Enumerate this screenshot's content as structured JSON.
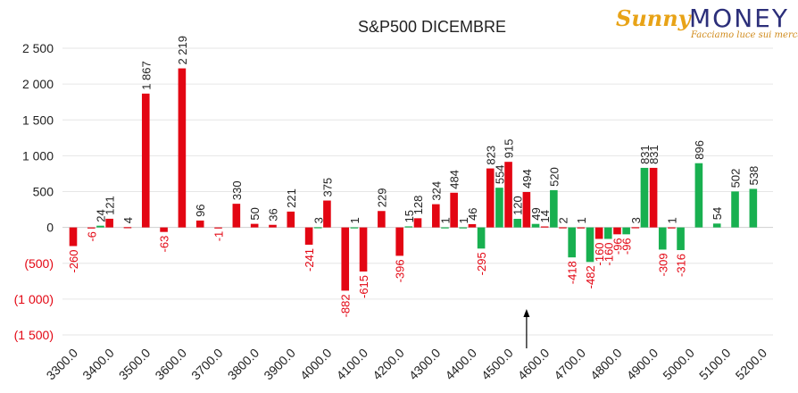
{
  "logo": {
    "part1": "Sunny",
    "part2": "MONEY",
    "tagline": "Facciamo luce sui mercati"
  },
  "chart_data": {
    "type": "bar",
    "title": "S&P500 DICEMBRE",
    "xlabel": "",
    "ylabel": "",
    "ylim": [
      -1500,
      2500
    ],
    "yticks": [
      2500,
      2000,
      1500,
      1000,
      500,
      0,
      -500,
      -1000,
      -1500
    ],
    "ytick_labels": [
      "2 500",
      "2 000",
      "1 500",
      "1 000",
      "500",
      "0",
      "(500)",
      "(1 000)",
      "(1 500)"
    ],
    "xtick_labels": [
      "3300.0",
      "3400.0",
      "3500.0",
      "3600.0",
      "3700.0",
      "3800.0",
      "3900.0",
      "4000.0",
      "4100.0",
      "4200.0",
      "4300.0",
      "4400.0",
      "4500.0",
      "4600.0",
      "4700.0",
      "4800.0",
      "4900.0",
      "5000.0",
      "5100.0",
      "5200.0"
    ],
    "grid": true,
    "marker_arrow_at": 4550,
    "series": [
      {
        "color": "#e30613",
        "x": [
          3300,
          3350,
          3400,
          3450,
          3500,
          3550,
          3600,
          3650,
          3700,
          3750,
          3800,
          3850,
          3900,
          3950,
          4000,
          4050,
          4100,
          4150,
          4200,
          4250,
          4300,
          4350,
          4400,
          4450,
          4500,
          4550,
          4600,
          4650,
          4700,
          4750,
          4800,
          4850,
          4900,
          4950
        ],
        "values": [
          -260,
          -6,
          121,
          4,
          1867,
          -63,
          2219,
          96,
          -1,
          330,
          50,
          36,
          221,
          -241,
          375,
          -882,
          -615,
          229,
          -396,
          128,
          324,
          484,
          46,
          823,
          915,
          494,
          14,
          2,
          1,
          -160,
          -96,
          3,
          831,
          1
        ],
        "labels": [
          "-260",
          "-6",
          "121",
          "4",
          "1 867",
          "-63",
          "2 219",
          "96",
          "-1",
          "330",
          "50",
          "36",
          "221",
          "-241",
          "375",
          "-882",
          "-615",
          "229",
          "-396",
          "128",
          "324",
          "484",
          "46",
          "823",
          "915",
          "494",
          "14",
          "2",
          "1",
          "-160",
          "-96",
          "3",
          "831",
          "1"
        ]
      },
      {
        "color": "#18b050",
        "x": [
          3375,
          3975,
          4075,
          4225,
          4325,
          4375,
          4425,
          4475,
          4525,
          4575,
          4625,
          4675,
          4725,
          4775,
          4825,
          4875,
          4925,
          4975,
          5025,
          5075,
          5125,
          5175
        ],
        "values": [
          24,
          3,
          1,
          15,
          1,
          1,
          -295,
          554,
          120,
          49,
          520,
          -418,
          -482,
          -160,
          -96,
          831,
          -309,
          -316,
          896,
          54,
          502,
          538
        ],
        "labels": [
          "24",
          "3",
          "1",
          "15",
          "1",
          "1",
          "-295",
          "554",
          "120",
          "49",
          "520",
          "-418",
          "-482",
          "-160",
          "-96",
          "831",
          "-309",
          "-316",
          "896",
          "54",
          "502",
          "538"
        ]
      }
    ]
  }
}
